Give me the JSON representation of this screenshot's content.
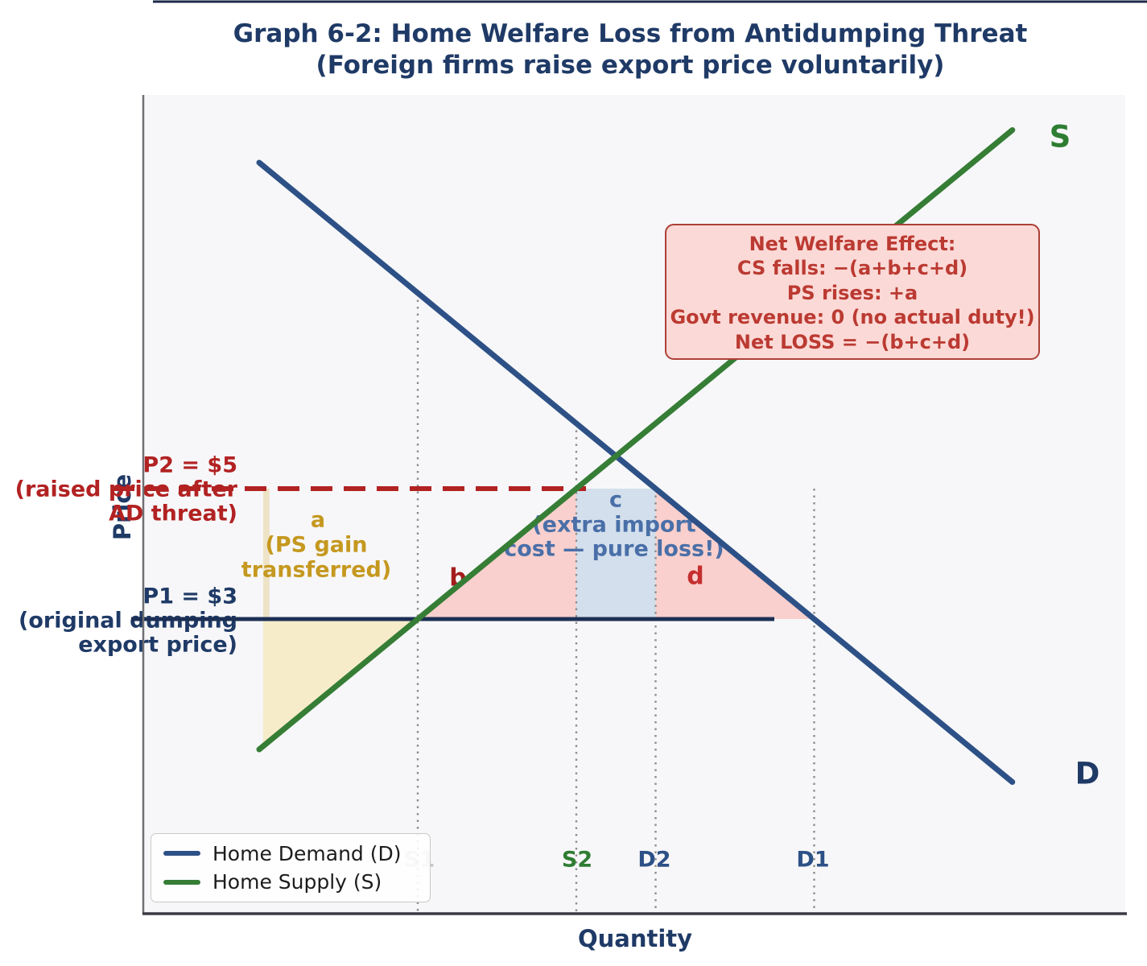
{
  "title": {
    "line1": "Graph 6-2: Home Welfare Loss from Antidumping Threat",
    "line2": "(Foreign firms raise export price voluntarily)"
  },
  "axis_labels": {
    "x": "Quantity",
    "y": "Price"
  },
  "price_annotations": {
    "p2": {
      "line1": "P2 = $5",
      "line2": "(raised price after",
      "line3": "AD threat)"
    },
    "p1": {
      "line1": "P1 = $3",
      "line2": "(original dumping",
      "line3": "export price)"
    }
  },
  "region_labels": {
    "a": {
      "line1": "a",
      "line2": "(PS gain",
      "line3": "transferred)"
    },
    "b": {
      "label": "b"
    },
    "c": {
      "line1": "c",
      "line2": "(extra import",
      "line3": "cost — pure loss!)"
    },
    "d": {
      "label": "d"
    }
  },
  "curve_end_labels": {
    "supply": "S",
    "demand": "D"
  },
  "welfare_box": {
    "lines": [
      "Net Welfare Effect:",
      "CS falls: −(a+b+c+d)",
      "PS rises: +a",
      "Govt revenue: 0 (no actual duty!)",
      "Net LOSS = −(b+c+d)"
    ]
  },
  "legend": {
    "items": [
      {
        "label": "Home Demand (D)",
        "color": "#2d5186"
      },
      {
        "label": "Home Supply (S)",
        "color": "#367d36"
      }
    ]
  },
  "colors": {
    "title_navy": "#1f3a66",
    "p2_red": "#b22222",
    "p1_navy": "#1c2f55",
    "region_a_gold": "#c5981f",
    "region_c_steel": "#4a6fa8",
    "supply_green": "#367d36",
    "demand_blue": "#2d5186",
    "pink_fill": "#f9d0cd",
    "blue_fill": "#d3dfec",
    "yellow_fill": "#f7ecc9",
    "box_bg": "#fbd9d6",
    "box_border": "#ad4038",
    "plot_bg": "#f7f7f9"
  },
  "chart_data": {
    "type": "line",
    "title": "Graph 6-2: Home Welfare Loss from Antidumping Threat (Foreign firms raise export price voluntarily)",
    "xlabel": "Quantity",
    "ylabel": "Price",
    "xlim": [
      0,
      10.4
    ],
    "ylim": [
      0,
      11
    ],
    "grid": false,
    "legend_position": "lower left",
    "series": [
      {
        "name": "Home Demand (D)",
        "label": "D",
        "color": "#2d5186",
        "points_qp": [
          [
            0,
            10
          ],
          [
            9.5,
            0.5
          ]
        ]
      },
      {
        "name": "Home Supply (S)",
        "label": "S",
        "color": "#367d36",
        "points_qp": [
          [
            0,
            1
          ],
          [
            9.5,
            10.5
          ]
        ]
      }
    ],
    "equilibrium_qp": [
      4.5,
      5.5
    ],
    "reference_lines": [
      {
        "name": "P2",
        "price": 5,
        "style": "dashed",
        "color": "#b22222",
        "label": "P2 = $5 (raised price after AD threat)"
      },
      {
        "name": "P1",
        "price": 3,
        "style": "solid",
        "color": "#1c2f55",
        "label": "P1 = $3 (original dumping export price)"
      }
    ],
    "x_ticks": [
      {
        "label": "S1",
        "q": 2,
        "vline_top_p": 8,
        "color": "#8a8a8a",
        "opacity": 0.45
      },
      {
        "label": "S2",
        "q": 4,
        "vline_top_p": 6,
        "color": "#2e7d32",
        "opacity": 1
      },
      {
        "label": "D2",
        "q": 5,
        "vline_top_p": 5,
        "color": "#2d5186",
        "opacity": 1
      },
      {
        "label": "D1",
        "q": 7,
        "vline_top_p": 5,
        "color": "#2d5186",
        "opacity": 1
      }
    ],
    "shaded_regions": [
      {
        "name": "a-left-edge",
        "description": "left edge of PS-gain region",
        "vertices_qp": [
          [
            0.05,
            5
          ],
          [
            0.13,
            5
          ],
          [
            0.13,
            1.13
          ],
          [
            0.05,
            1.05
          ]
        ],
        "color": "#e8d49c",
        "opacity": 0.55
      },
      {
        "name": "a",
        "description": "PS gain transferred",
        "vertices_qp": [
          [
            0.05,
            3
          ],
          [
            2,
            3
          ],
          [
            0.05,
            1.05
          ]
        ],
        "color": "#f7ecc9",
        "opacity": 1
      },
      {
        "name": "b",
        "description": "production distortion loss",
        "vertices_qp": [
          [
            2,
            3
          ],
          [
            4,
            5
          ],
          [
            4,
            3
          ]
        ],
        "color": "#f9d0cd",
        "opacity": 1
      },
      {
        "name": "c",
        "description": "extra import cost — pure loss",
        "vertices_qp": [
          [
            4,
            5
          ],
          [
            5,
            5
          ],
          [
            5,
            3
          ],
          [
            4,
            3
          ]
        ],
        "color": "#d3dfec",
        "opacity": 1
      },
      {
        "name": "d",
        "description": "consumption distortion loss",
        "vertices_qp": [
          [
            5,
            5
          ],
          [
            7,
            3
          ],
          [
            5,
            3
          ]
        ],
        "color": "#f9d0cd",
        "opacity": 1
      }
    ],
    "annotation_box": "Net Welfare Effect: CS falls: −(a+b+c+d) / PS rises: +a / Govt revenue: 0 (no actual duty!) / Net LOSS = −(b+c+d)"
  }
}
